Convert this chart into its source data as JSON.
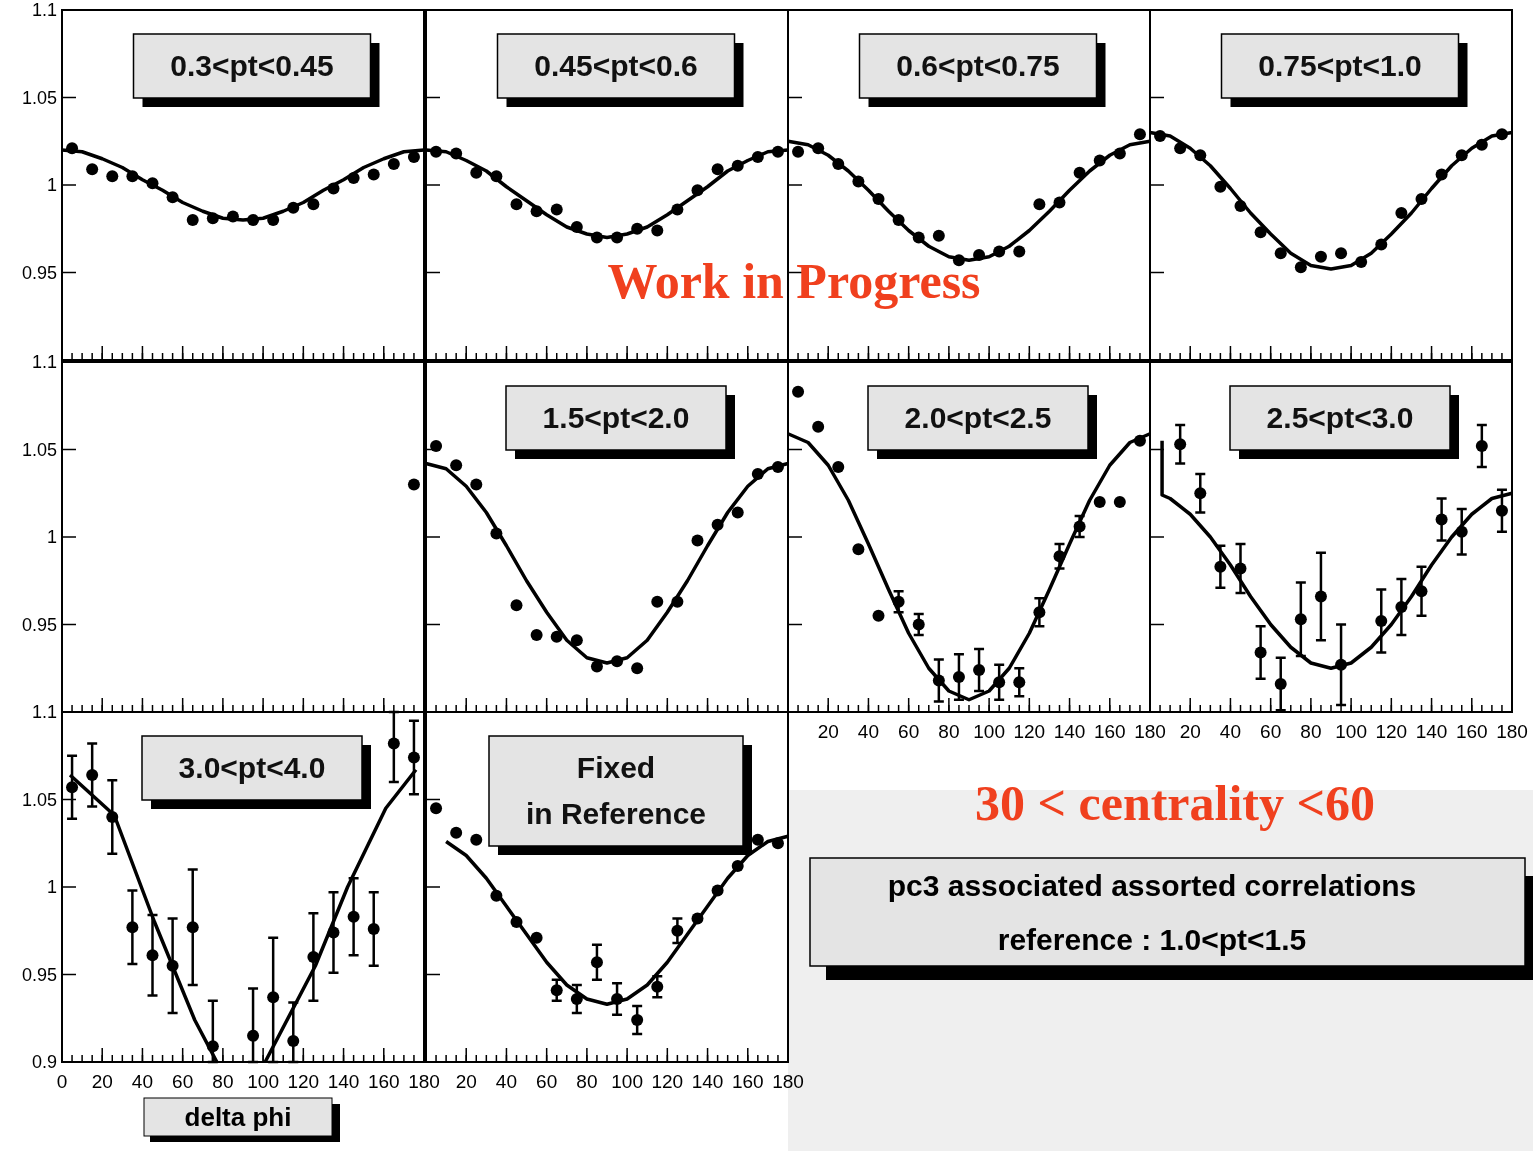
{
  "chart_data": [
    {
      "type": "scatter",
      "title": "0.3<pt<0.45",
      "tick_labels": "y",
      "xlim": [
        0,
        180
      ],
      "xticks": [
        0,
        20,
        40,
        60,
        80,
        100,
        120,
        140,
        160,
        180
      ],
      "ylim": [
        0.9,
        1.1
      ],
      "yticks": [
        0.95,
        1,
        1.05,
        1.1
      ],
      "series": [
        {
          "type": "scatter",
          "marker": "circle",
          "color": "#000000",
          "x": [
            5,
            15,
            25,
            35,
            45,
            55,
            65,
            75,
            85,
            95,
            105,
            115,
            125,
            135,
            145,
            155,
            165,
            175
          ],
          "values": [
            1.021,
            1.009,
            1.005,
            1.005,
            1.001,
            0.993,
            0.98,
            0.981,
            0.982,
            0.98,
            0.98,
            0.987,
            0.989,
            0.998,
            1.004,
            1.006,
            1.012,
            1.016
          ]
        },
        {
          "type": "line",
          "color": "#000000",
          "x": [
            0,
            10,
            20,
            30,
            40,
            50,
            60,
            70,
            80,
            90,
            100,
            110,
            120,
            130,
            140,
            150,
            160,
            170,
            180
          ],
          "values": [
            1.02,
            1.019,
            1.015,
            1.01,
            1.003,
            0.997,
            0.99,
            0.985,
            0.981,
            0.98,
            0.981,
            0.985,
            0.99,
            0.997,
            1.003,
            1.01,
            1.015,
            1.019,
            1.02
          ]
        }
      ]
    },
    {
      "type": "scatter",
      "title": "0.45<pt<0.6",
      "tick_labels": false,
      "annotations": [
        "Work in Progress"
      ],
      "xlim": [
        0,
        180
      ],
      "xticks": [
        0,
        20,
        40,
        60,
        80,
        100,
        120,
        140,
        160,
        180
      ],
      "ylim": [
        0.9,
        1.1
      ],
      "yticks": [
        0.95,
        1,
        1.05,
        1.1
      ],
      "series": [
        {
          "type": "scatter",
          "marker": "circle",
          "color": "#000000",
          "x": [
            5,
            15,
            25,
            35,
            45,
            55,
            65,
            75,
            85,
            95,
            105,
            115,
            125,
            135,
            145,
            155,
            165,
            175
          ],
          "values": [
            1.019,
            1.018,
            1.007,
            1.005,
            0.989,
            0.985,
            0.986,
            0.976,
            0.97,
            0.97,
            0.975,
            0.974,
            0.986,
            0.997,
            1.009,
            1.011,
            1.016,
            1.019
          ]
        },
        {
          "type": "line",
          "color": "#000000",
          "x": [
            0,
            10,
            20,
            30,
            40,
            50,
            60,
            70,
            80,
            90,
            100,
            110,
            120,
            130,
            140,
            150,
            160,
            170,
            180
          ],
          "values": [
            1.02,
            1.019,
            1.014,
            1.008,
            0.999,
            0.991,
            0.983,
            0.976,
            0.972,
            0.97,
            0.972,
            0.976,
            0.983,
            0.991,
            0.999,
            1.008,
            1.014,
            1.019,
            1.02
          ]
        }
      ]
    },
    {
      "type": "scatter",
      "title": "0.6<pt<0.75",
      "tick_labels": false,
      "xlim": [
        0,
        180
      ],
      "xticks": [
        0,
        20,
        40,
        60,
        80,
        100,
        120,
        140,
        160,
        180
      ],
      "ylim": [
        0.9,
        1.1
      ],
      "yticks": [
        0.95,
        1,
        1.05,
        1.1
      ],
      "series": [
        {
          "type": "scatter",
          "marker": "circle",
          "color": "#000000",
          "x": [
            5,
            15,
            25,
            35,
            45,
            55,
            65,
            75,
            85,
            95,
            105,
            115,
            125,
            135,
            145,
            155,
            165,
            175
          ],
          "values": [
            1.019,
            1.021,
            1.012,
            1.002,
            0.992,
            0.98,
            0.97,
            0.971,
            0.957,
            0.96,
            0.962,
            0.962,
            0.989,
            0.99,
            1.007,
            1.014,
            1.018,
            1.029
          ]
        },
        {
          "type": "line",
          "color": "#000000",
          "x": [
            0,
            10,
            20,
            30,
            40,
            50,
            60,
            70,
            80,
            90,
            100,
            110,
            120,
            130,
            140,
            150,
            160,
            170,
            180
          ],
          "values": [
            1.025,
            1.023,
            1.017,
            1.008,
            0.997,
            0.985,
            0.974,
            0.965,
            0.959,
            0.957,
            0.959,
            0.965,
            0.974,
            0.985,
            0.997,
            1.008,
            1.017,
            1.023,
            1.025
          ]
        }
      ]
    },
    {
      "type": "scatter",
      "title": "0.75<pt<1.0",
      "tick_labels": false,
      "xlim": [
        0,
        180
      ],
      "xticks": [
        0,
        20,
        40,
        60,
        80,
        100,
        120,
        140,
        160,
        180
      ],
      "ylim": [
        0.9,
        1.1
      ],
      "yticks": [
        0.95,
        1,
        1.05,
        1.1
      ],
      "series": [
        {
          "type": "scatter",
          "marker": "circle",
          "color": "#000000",
          "x": [
            5,
            15,
            25,
            35,
            45,
            55,
            65,
            75,
            85,
            95,
            105,
            115,
            125,
            135,
            145,
            155,
            165,
            175
          ],
          "values": [
            1.028,
            1.021,
            1.017,
            0.999,
            0.988,
            0.973,
            0.961,
            0.953,
            0.959,
            0.961,
            0.956,
            0.966,
            0.984,
            0.992,
            1.006,
            1.017,
            1.023,
            1.029
          ]
        },
        {
          "type": "line",
          "color": "#000000",
          "x": [
            0,
            10,
            20,
            30,
            40,
            50,
            60,
            70,
            80,
            90,
            100,
            110,
            120,
            130,
            140,
            150,
            160,
            170,
            180
          ],
          "values": [
            1.03,
            1.028,
            1.021,
            1.011,
            0.998,
            0.984,
            0.972,
            0.961,
            0.954,
            0.952,
            0.954,
            0.961,
            0.972,
            0.984,
            0.998,
            1.011,
            1.021,
            1.028,
            1.03
          ]
        }
      ]
    },
    {
      "type": "scatter",
      "tick_labels": "y",
      "xlim": [
        0,
        180
      ],
      "xticks": [
        0,
        20,
        40,
        60,
        80,
        100,
        120,
        140,
        160,
        180
      ],
      "ylim": [
        0.9,
        1.1
      ],
      "yticks": [
        0.95,
        1,
        1.05,
        1.1
      ],
      "series": [
        {
          "type": "scatter",
          "marker": "circle",
          "color": "#000000",
          "x": [
            175
          ],
          "values": [
            1.03
          ]
        }
      ]
    },
    {
      "type": "scatter",
      "title": "1.5<pt<2.0",
      "tick_labels": false,
      "xlim": [
        0,
        180
      ],
      "xticks": [
        0,
        20,
        40,
        60,
        80,
        100,
        120,
        140,
        160,
        180
      ],
      "ylim": [
        0.9,
        1.1
      ],
      "yticks": [
        0.95,
        1,
        1.05,
        1.1
      ],
      "series": [
        {
          "type": "scatter",
          "marker": "circle",
          "color": "#000000",
          "x": [
            5,
            15,
            25,
            35,
            45,
            55,
            65,
            75,
            85,
            95,
            105,
            115,
            125,
            135,
            145,
            155,
            165,
            175
          ],
          "values": [
            1.052,
            1.041,
            1.03,
            1.002,
            0.961,
            0.944,
            0.943,
            0.941,
            0.926,
            0.929,
            0.925,
            0.963,
            0.963,
            0.998,
            1.007,
            1.014,
            1.036,
            1.04
          ]
        },
        {
          "type": "line",
          "color": "#000000",
          "x": [
            0,
            10,
            20,
            30,
            40,
            50,
            60,
            70,
            80,
            90,
            100,
            110,
            120,
            130,
            140,
            150,
            160,
            170,
            180
          ],
          "values": [
            1.042,
            1.039,
            1.029,
            1.014,
            0.995,
            0.975,
            0.957,
            0.941,
            0.931,
            0.928,
            0.931,
            0.941,
            0.957,
            0.975,
            0.995,
            1.014,
            1.029,
            1.039,
            1.042
          ]
        }
      ]
    },
    {
      "type": "scatter",
      "title": "2.0<pt<2.5",
      "tick_labels": "x",
      "xlim": [
        0,
        180
      ],
      "xticks": [
        20,
        40,
        60,
        80,
        100,
        120,
        140,
        160,
        180
      ],
      "ylim": [
        0.9,
        1.1
      ],
      "yticks": [
        0.95,
        1,
        1.05,
        1.1
      ],
      "series": [
        {
          "type": "scatter",
          "marker": "circle",
          "color": "#000000",
          "x": [
            5,
            15,
            25,
            35,
            45,
            55,
            65,
            75,
            85,
            95,
            105,
            115,
            125,
            135,
            145,
            155,
            165,
            175
          ],
          "values": [
            1.083,
            1.063,
            1.04,
            0.993,
            0.955,
            0.963,
            0.95,
            0.918,
            0.92,
            0.924,
            0.917,
            0.917,
            0.957,
            0.989,
            1.006,
            1.02,
            1.02,
            1.055
          ],
          "errors": [
            null,
            null,
            null,
            null,
            null,
            0.006,
            0.006,
            0.012,
            0.013,
            0.012,
            0.01,
            0.008,
            0.008,
            0.007,
            0.006,
            null,
            null,
            null
          ]
        },
        {
          "type": "line",
          "color": "#000000",
          "x": [
            0,
            10,
            20,
            30,
            40,
            50,
            60,
            70,
            80,
            90,
            100,
            110,
            120,
            130,
            140,
            150,
            160,
            170,
            180
          ],
          "values": [
            1.059,
            1.054,
            1.041,
            1.021,
            0.996,
            0.97,
            0.945,
            0.925,
            0.912,
            0.907,
            0.912,
            0.925,
            0.945,
            0.97,
            0.996,
            1.021,
            1.041,
            1.054,
            1.059
          ]
        }
      ]
    },
    {
      "type": "scatter",
      "title": "2.5<pt<3.0",
      "tick_labels": "x",
      "xlim": [
        0,
        180
      ],
      "xticks": [
        20,
        40,
        60,
        80,
        100,
        120,
        140,
        160,
        180
      ],
      "ylim": [
        0.9,
        1.1
      ],
      "yticks": [
        0.95,
        1,
        1.05,
        1.1
      ],
      "series": [
        {
          "type": "scatter",
          "marker": "circle",
          "color": "#000000",
          "x": [
            15,
            25,
            35,
            45,
            55,
            65,
            75,
            85,
            95,
            115,
            125,
            135,
            145,
            155,
            165,
            175
          ],
          "values": [
            1.053,
            1.025,
            0.983,
            0.982,
            0.934,
            0.916,
            0.953,
            0.966,
            0.927,
            0.952,
            0.96,
            0.969,
            1.01,
            1.003,
            1.052,
            1.015
          ],
          "errors": [
            0.011,
            0.011,
            0.012,
            0.014,
            0.015,
            0.015,
            0.021,
            0.025,
            0.023,
            0.018,
            0.016,
            0.014,
            0.012,
            0.013,
            0.012,
            0.012
          ]
        },
        {
          "type": "line",
          "color": "#000000",
          "x": [
            6,
            6,
            10,
            20,
            30,
            40,
            50,
            60,
            70,
            80,
            90,
            100,
            110,
            120,
            130,
            140,
            150,
            160,
            170,
            180
          ],
          "values": [
            1.055,
            1.024,
            1.022,
            1.013,
            1.0,
            0.984,
            0.966,
            0.95,
            0.937,
            0.928,
            0.925,
            0.928,
            0.937,
            0.95,
            0.966,
            0.984,
            1.0,
            1.013,
            1.022,
            1.025
          ]
        }
      ]
    },
    {
      "type": "scatter",
      "title": "3.0<pt<4.0",
      "xlabel": "delta phi",
      "xlim": [
        0,
        180
      ],
      "xticks": [
        0,
        20,
        40,
        60,
        80,
        100,
        120,
        140,
        160,
        180
      ],
      "ylim": [
        0.9,
        1.1
      ],
      "yticks": [
        0.9,
        0.95,
        1,
        1.05,
        1.1
      ],
      "series": [
        {
          "type": "scatter",
          "marker": "circle",
          "color": "#000000",
          "x": [
            5,
            15,
            25,
            35,
            45,
            55,
            65,
            75,
            95,
            105,
            115,
            125,
            135,
            145,
            155,
            165,
            175
          ],
          "values": [
            1.057,
            1.064,
            1.04,
            0.977,
            0.961,
            0.955,
            0.977,
            0.909,
            0.915,
            0.937,
            0.912,
            0.96,
            0.974,
            0.983,
            0.976,
            1.082,
            1.074
          ],
          "errors": [
            [
              1.039,
              1.075
            ],
            [
              1.046,
              1.082
            ],
            [
              1.019,
              1.061
            ],
            [
              0.956,
              0.998
            ],
            [
              0.938,
              0.984
            ],
            [
              0.928,
              0.982
            ],
            [
              0.944,
              1.01
            ],
            [
              0.9,
              0.935
            ],
            [
              0.9,
              0.942
            ],
            [
              0.9,
              0.971
            ],
            [
              0.9,
              0.934
            ],
            [
              0.935,
              0.985
            ],
            [
              0.951,
              0.997
            ],
            [
              0.961,
              1.005
            ],
            [
              0.955,
              0.997
            ],
            [
              1.06,
              1.1
            ],
            [
              1.053,
              1.095
            ]
          ]
        },
        {
          "type": "line",
          "color": "#000000",
          "x": [
            4,
            26,
            46,
            66,
            77,
            89,
            101,
            126,
            142,
            161,
            176
          ],
          "values": [
            1.064,
            1.041,
            0.98,
            0.924,
            0.9,
            null,
            0.9,
            0.955,
            1.0,
            1.045,
            1.067
          ]
        }
      ]
    },
    {
      "type": "scatter",
      "title": "Fixed\nin Reference",
      "tick_labels": "x",
      "xlim": [
        0,
        180
      ],
      "xticks": [
        20,
        40,
        60,
        80,
        100,
        120,
        140,
        160,
        180
      ],
      "ylim": [
        0.9,
        1.1
      ],
      "yticks": [
        0.9,
        0.95,
        1,
        1.05,
        1.1
      ],
      "series": [
        {
          "type": "scatter",
          "marker": "circle",
          "color": "#000000",
          "x": [
            5,
            15,
            25,
            35,
            45,
            55,
            65,
            75,
            85,
            95,
            105,
            115,
            125,
            135,
            145,
            155,
            165,
            175
          ],
          "values": [
            1.045,
            1.031,
            1.027,
            0.995,
            0.98,
            0.971,
            0.941,
            0.936,
            0.957,
            0.936,
            0.924,
            0.943,
            0.975,
            0.982,
            0.998,
            1.012,
            1.027,
            1.025
          ],
          "errors": [
            null,
            null,
            null,
            null,
            null,
            null,
            0.006,
            0.008,
            0.01,
            0.009,
            0.008,
            0.006,
            0.007,
            null,
            null,
            null,
            null,
            null
          ]
        },
        {
          "type": "line",
          "color": "#000000",
          "x": [
            10,
            20,
            30,
            40,
            50,
            60,
            70,
            80,
            90,
            100,
            110,
            120,
            130,
            140,
            150,
            160,
            170,
            180
          ],
          "values": [
            1.026,
            1.018,
            1.005,
            0.989,
            0.973,
            0.957,
            0.944,
            0.936,
            0.933,
            0.936,
            0.944,
            0.957,
            0.973,
            0.989,
            1.005,
            1.018,
            1.026,
            1.029
          ]
        }
      ]
    },
    {
      "type": "other",
      "title": "30 < centrality <60",
      "annotations": [
        "pc3 associated assorted correlations",
        "reference : 1.0<pt<1.5"
      ]
    }
  ]
}
